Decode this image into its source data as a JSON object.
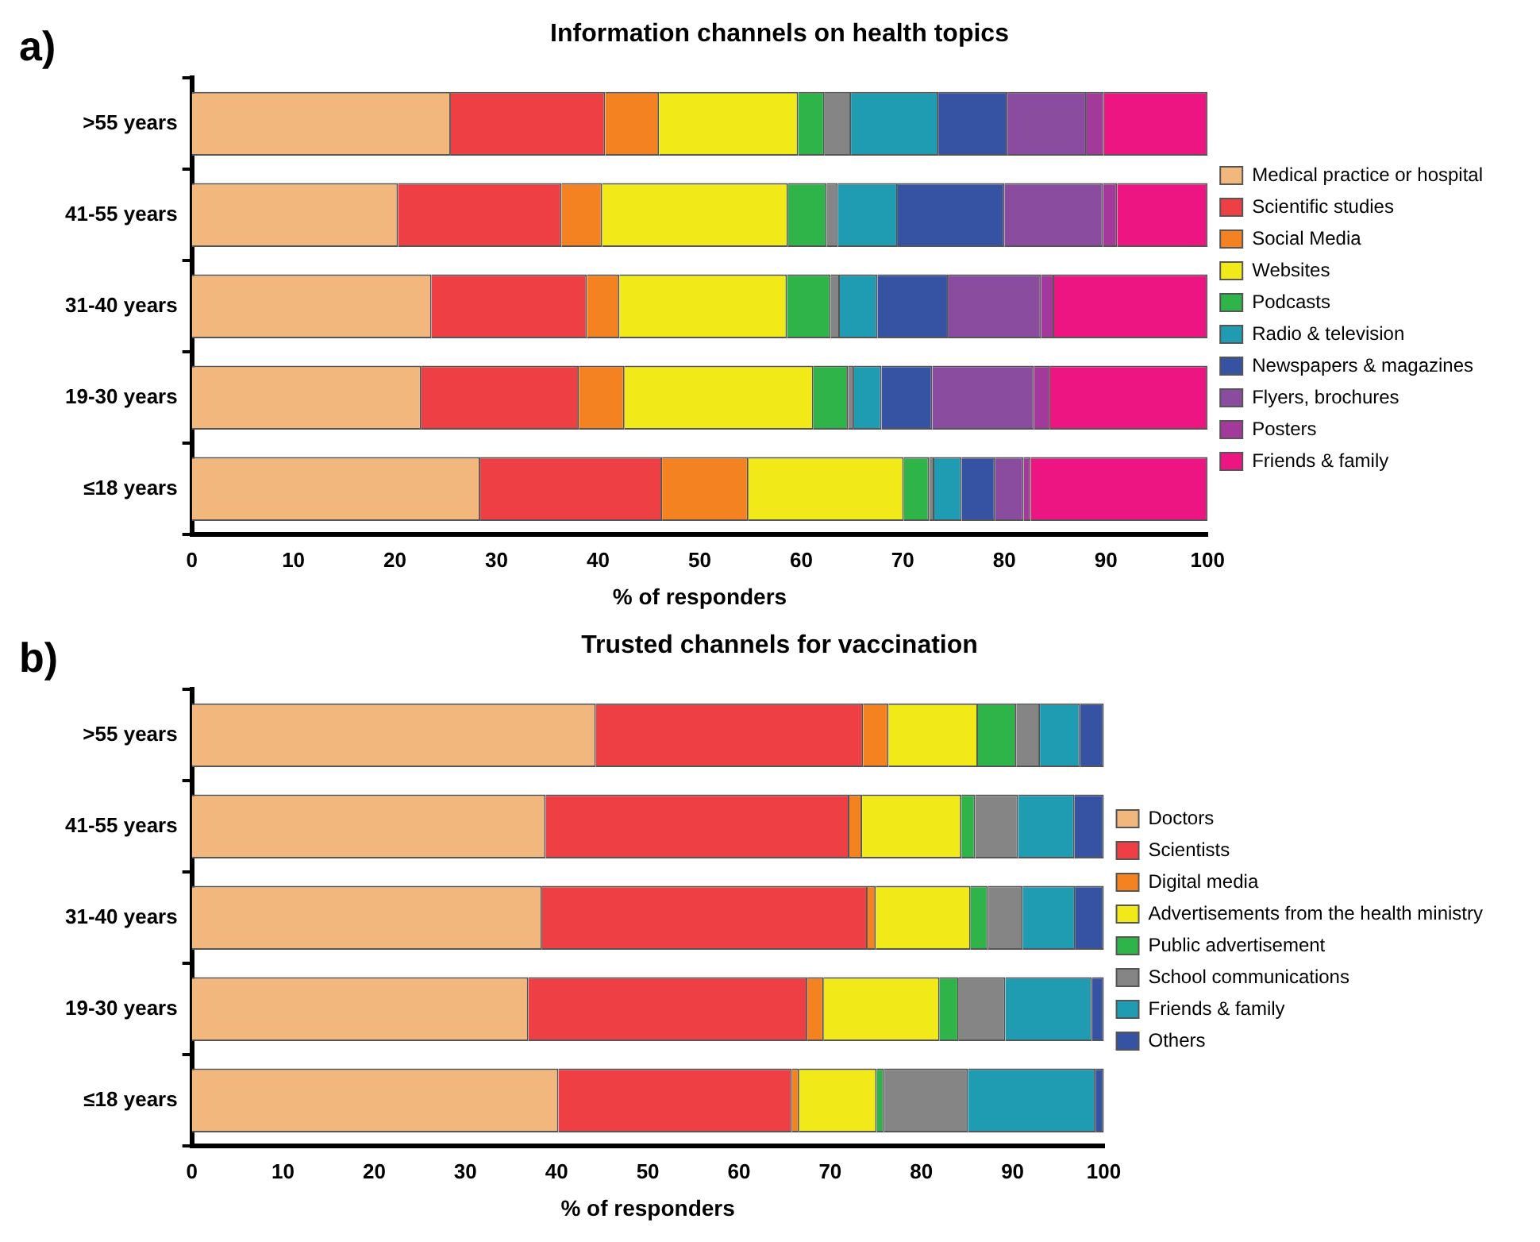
{
  "chart_data": [
    {
      "type": "bar",
      "title": "Information channels on health topics",
      "xlabel": "% of responders",
      "annotations": [
        "a)"
      ],
      "orientation": "horizontal",
      "stacked": true,
      "legend": "right",
      "grid": false,
      "xlim": [
        0,
        100
      ],
      "xticks": [
        0,
        10,
        20,
        30,
        40,
        50,
        60,
        70,
        80,
        90,
        100
      ],
      "categories": [
        ">55 years",
        "41-55 years",
        "31-40 years",
        "19-30 years",
        "≤18 years"
      ],
      "series": [
        {
          "name": "Medical practice or hospital",
          "color": "#f2b77c",
          "values": [
            25.5,
            20.3,
            23.6,
            22.6,
            28.4
          ]
        },
        {
          "name": "Scientific studies",
          "color": "#ee4044",
          "values": [
            15.2,
            16.1,
            15.3,
            15.5,
            17.9
          ]
        },
        {
          "name": "Social Media",
          "color": "#f58220",
          "values": [
            5.3,
            4.0,
            3.2,
            4.5,
            8.5
          ]
        },
        {
          "name": "Websites",
          "color": "#f2ea18",
          "values": [
            13.7,
            18.3,
            16.5,
            18.6,
            15.3
          ]
        },
        {
          "name": "Podcasts",
          "color": "#2fb44a",
          "values": [
            2.6,
            3.8,
            4.3,
            3.4,
            2.5
          ]
        },
        {
          "color": "#858585",
          "values": [
            2.6,
            1.1,
            0.9,
            0.6,
            0.5
          ]
        },
        {
          "name": "Radio & television",
          "color": "#1f9bb2",
          "values": [
            8.6,
            5.9,
            3.7,
            2.7,
            2.7
          ]
        },
        {
          "name": "Newspapers & magazines",
          "color": "#3552a3",
          "values": [
            6.8,
            10.5,
            7.0,
            5.0,
            3.3
          ]
        },
        {
          "name": "Flyers, brochures",
          "color": "#8a4c9e",
          "values": [
            7.8,
            9.7,
            9.1,
            10.0,
            2.8
          ]
        },
        {
          "name": "Posters",
          "color": "#a3399a",
          "values": [
            1.7,
            1.4,
            1.3,
            1.6,
            0.7
          ]
        },
        {
          "name": "Friends & family",
          "color": "#ed1582",
          "values": [
            10.2,
            8.9,
            15.1,
            15.5,
            17.4
          ]
        }
      ]
    },
    {
      "type": "bar",
      "title": "Trusted channels for vaccination",
      "xlabel": "% of responders",
      "annotations": [
        "b)"
      ],
      "orientation": "horizontal",
      "stacked": true,
      "legend": "right",
      "grid": false,
      "xlim": [
        0,
        100
      ],
      "xticks": [
        0,
        10,
        20,
        30,
        40,
        50,
        60,
        70,
        80,
        90,
        100
      ],
      "categories": [
        ">55 years",
        "41-55 years",
        "31-40 years",
        "19-30 years",
        "≤18 years"
      ],
      "series": [
        {
          "name": "Doctors",
          "color": "#f2b77c",
          "values": [
            44.3,
            38.8,
            38.4,
            36.9,
            40.2
          ]
        },
        {
          "name": "Scientists",
          "color": "#ee4044",
          "values": [
            29.3,
            33.3,
            35.7,
            30.6,
            25.6
          ]
        },
        {
          "name": "Digital media",
          "color": "#f58220",
          "values": [
            2.8,
            1.4,
            0.9,
            1.8,
            0.8
          ]
        },
        {
          "name": "Advertisements from the health ministry",
          "color": "#f2ea18",
          "values": [
            9.8,
            10.9,
            10.4,
            12.7,
            8.5
          ]
        },
        {
          "name": "Public advertisement",
          "color": "#2fb44a",
          "values": [
            4.2,
            1.5,
            1.9,
            2.1,
            0.8
          ]
        },
        {
          "name": "School communications",
          "color": "#858585",
          "values": [
            2.6,
            4.7,
            3.8,
            5.1,
            9.2
          ]
        },
        {
          "name": "Friends & family",
          "color": "#1f9bb2",
          "values": [
            4.4,
            6.2,
            5.8,
            9.5,
            14.0
          ]
        },
        {
          "name": "Others",
          "color": "#3552a3",
          "values": [
            2.6,
            3.2,
            3.1,
            1.3,
            0.9
          ]
        }
      ]
    }
  ]
}
